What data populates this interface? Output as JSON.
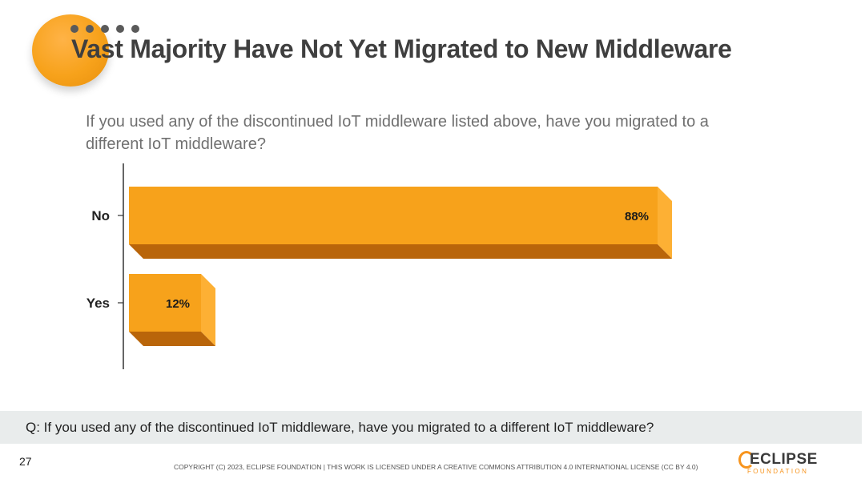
{
  "slide": {
    "title": "Vast Majority Have Not Yet Migrated to New Middleware",
    "question": "If you used any of the discontinued IoT middleware listed above, have you migrated to a different IoT middleware?",
    "footer_question": "Q: If you used any of the discontinued IoT middleware, have you migrated to a different IoT middleware?",
    "page_number": "27",
    "copyright": "COPYRIGHT (C) 2023, ECLIPSE FOUNDATION | THIS WORK IS LICENSED UNDER A CREATIVE COMMONS ATTRIBUTION 4.0 INTERNATIONAL LICENSE (CC BY 4.0)"
  },
  "logo": {
    "wordmark": "ECLIPSE",
    "subtitle": "FOUNDATION",
    "accent_color": "#f7941d"
  },
  "colors": {
    "bar_front": "#f7a21b",
    "bar_top": "#fbb45a",
    "bar_side": "#fdb034",
    "bar_bottom": "#b9650a",
    "accent": "#f7941d"
  },
  "chart_data": {
    "type": "bar",
    "orientation": "horizontal",
    "categories": [
      "No",
      "Yes"
    ],
    "values": [
      88,
      12
    ],
    "labels": [
      "88%",
      "12%"
    ],
    "xlim": [
      0,
      100
    ],
    "grid": false,
    "legend": "none"
  }
}
